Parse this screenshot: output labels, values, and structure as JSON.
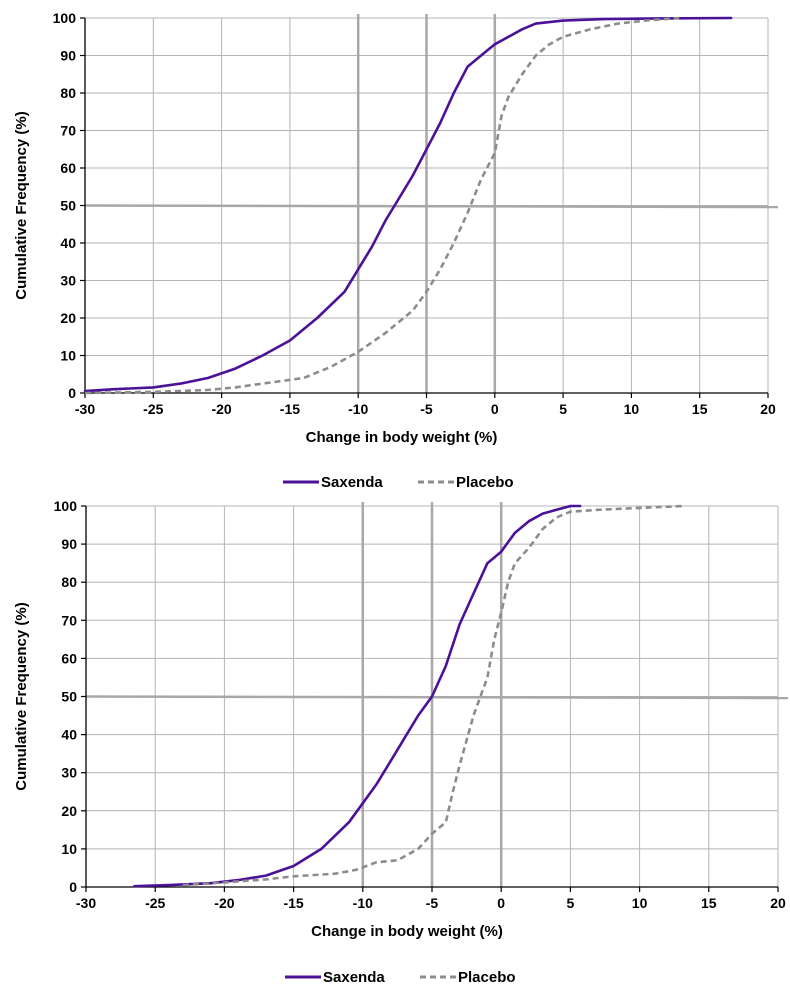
{
  "chart_data": [
    {
      "type": "line",
      "xlabel": "Change in body weight (%)",
      "ylabel": "Cumulative Frequency (%)",
      "xlim": [
        -30,
        20
      ],
      "ylim": [
        0,
        100
      ],
      "x_ticks": [
        "-30",
        "-25",
        "-20",
        "-15",
        "-10",
        "-5",
        "0",
        "5",
        "10",
        "15",
        "20"
      ],
      "y_ticks": [
        "0",
        "10",
        "20",
        "30",
        "40",
        "50",
        "60",
        "70",
        "80",
        "90",
        "100"
      ],
      "grid": true,
      "reference_lines": {
        "vertical": [
          -10,
          -5,
          0
        ],
        "horizontal": [
          50
        ]
      },
      "legend": "bottom",
      "series": [
        {
          "name": "Saxenda",
          "color": "#4b1196",
          "style": "solid",
          "points": [
            [
              -30,
              0.5
            ],
            [
              -28,
              1
            ],
            [
              -25,
              1.5
            ],
            [
              -23,
              2.5
            ],
            [
              -21,
              4
            ],
            [
              -19,
              6.5
            ],
            [
              -17,
              10
            ],
            [
              -15,
              14
            ],
            [
              -13,
              20
            ],
            [
              -11,
              27
            ],
            [
              -10,
              33
            ],
            [
              -9,
              39
            ],
            [
              -8,
              46
            ],
            [
              -7,
              52
            ],
            [
              -6,
              58
            ],
            [
              -5,
              65
            ],
            [
              -4,
              72
            ],
            [
              -3,
              80
            ],
            [
              -2,
              87
            ],
            [
              -1,
              90
            ],
            [
              0,
              93
            ],
            [
              1,
              95
            ],
            [
              2,
              97
            ],
            [
              3,
              98.5
            ],
            [
              5,
              99.3
            ],
            [
              8,
              99.7
            ],
            [
              12,
              99.9
            ],
            [
              17.3,
              100
            ]
          ]
        },
        {
          "name": "Placebo",
          "color": "#8c8c8c",
          "style": "dashed",
          "points": [
            [
              -30,
              0
            ],
            [
              -25,
              0.3
            ],
            [
              -21,
              0.8
            ],
            [
              -19,
              1.5
            ],
            [
              -17,
              2.5
            ],
            [
              -14,
              4
            ],
            [
              -12,
              7
            ],
            [
              -10,
              11
            ],
            [
              -8,
              16
            ],
            [
              -6,
              22
            ],
            [
              -5,
              27
            ],
            [
              -4,
              33
            ],
            [
              -3,
              40
            ],
            [
              -2,
              48
            ],
            [
              -1,
              57
            ],
            [
              0,
              64
            ],
            [
              0.5,
              74
            ],
            [
              1,
              79
            ],
            [
              2,
              85
            ],
            [
              3,
              90
            ],
            [
              4,
              93
            ],
            [
              5,
              95
            ],
            [
              7,
              97
            ],
            [
              9,
              98.5
            ],
            [
              11,
              99.3
            ],
            [
              13.5,
              100
            ]
          ]
        }
      ]
    },
    {
      "type": "line",
      "xlabel": "Change in body weight (%)",
      "ylabel": "Cumulative Frequency (%)",
      "xlim": [
        -30,
        20
      ],
      "ylim": [
        0,
        100
      ],
      "x_ticks": [
        "-30",
        "-25",
        "-20",
        "-15",
        "-10",
        "-5",
        "0",
        "5",
        "10",
        "15",
        "20"
      ],
      "y_ticks": [
        "0",
        "10",
        "20",
        "30",
        "40",
        "50",
        "60",
        "70",
        "80",
        "90",
        "100"
      ],
      "grid": true,
      "reference_lines": {
        "vertical": [
          -10,
          -5,
          0
        ],
        "horizontal": [
          50
        ]
      },
      "legend": "bottom",
      "series": [
        {
          "name": "Saxenda",
          "color": "#4b1196",
          "style": "solid",
          "points": [
            [
              -26.5,
              0.2
            ],
            [
              -24,
              0.5
            ],
            [
              -21,
              1
            ],
            [
              -19,
              1.8
            ],
            [
              -17,
              3
            ],
            [
              -15,
              5.5
            ],
            [
              -13,
              10
            ],
            [
              -11,
              17
            ],
            [
              -10,
              22
            ],
            [
              -9,
              27
            ],
            [
              -8,
              33
            ],
            [
              -7,
              39
            ],
            [
              -6,
              45
            ],
            [
              -5,
              50
            ],
            [
              -4,
              58
            ],
            [
              -3,
              69
            ],
            [
              -2,
              77
            ],
            [
              -1,
              85
            ],
            [
              0,
              88
            ],
            [
              1,
              93
            ],
            [
              2,
              96
            ],
            [
              3,
              98
            ],
            [
              4,
              99
            ],
            [
              5,
              100
            ],
            [
              5.7,
              100
            ]
          ]
        },
        {
          "name": "Placebo",
          "color": "#8c8c8c",
          "style": "dashed",
          "points": [
            [
              -23,
              0.5
            ],
            [
              -20,
              1.2
            ],
            [
              -17,
              2
            ],
            [
              -15,
              2.8
            ],
            [
              -12,
              3.5
            ],
            [
              -10.5,
              4.5
            ],
            [
              -9,
              6.5
            ],
            [
              -7.5,
              7
            ],
            [
              -6,
              10
            ],
            [
              -5,
              14
            ],
            [
              -4,
              17
            ],
            [
              -3.5,
              25
            ],
            [
              -3,
              32
            ],
            [
              -2,
              45
            ],
            [
              -1,
              55
            ],
            [
              -0.5,
              65
            ],
            [
              0,
              72
            ],
            [
              0.5,
              80
            ],
            [
              1,
              85
            ],
            [
              2,
              89
            ],
            [
              3,
              94
            ],
            [
              4,
              97
            ],
            [
              5,
              98.5
            ],
            [
              7,
              99
            ],
            [
              10,
              99.5
            ],
            [
              13.2,
              100
            ]
          ]
        }
      ]
    }
  ]
}
